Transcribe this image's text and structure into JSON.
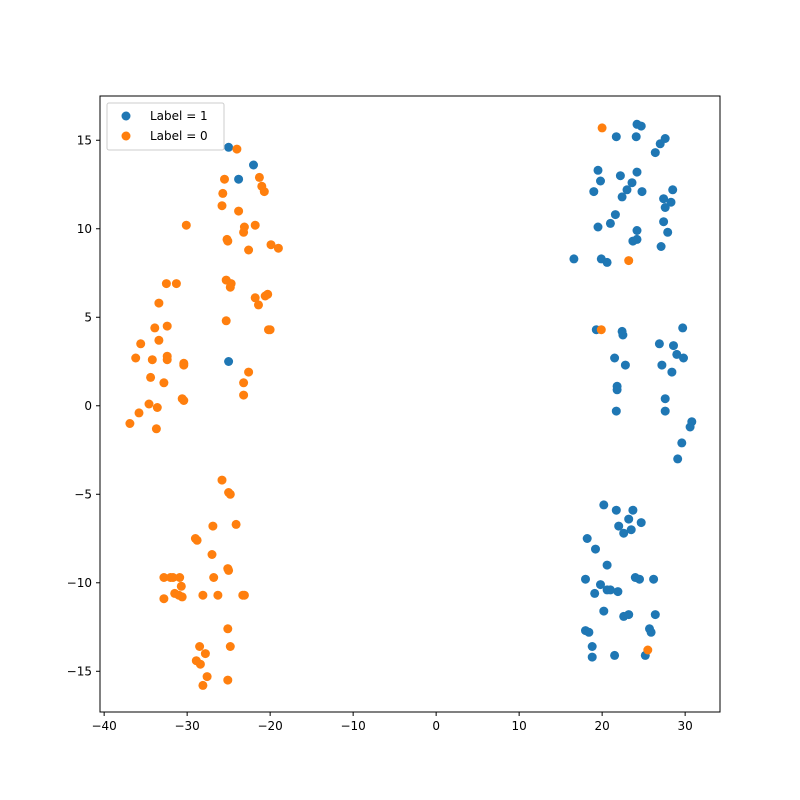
{
  "chart_data": {
    "type": "scatter",
    "title": "",
    "xlabel": "",
    "ylabel": "",
    "xlim": [
      -40.5,
      34.2
    ],
    "ylim": [
      -17.3,
      17.5
    ],
    "xticks": [
      -40,
      -30,
      -20,
      -10,
      0,
      10,
      20,
      30
    ],
    "yticks": [
      -15,
      -10,
      -5,
      0,
      5,
      10,
      15
    ],
    "xtick_labels": [
      "−40",
      "−30",
      "−20",
      "−10",
      "0",
      "10",
      "20",
      "30"
    ],
    "ytick_labels": [
      "−15",
      "−10",
      "−5",
      "0",
      "5",
      "10",
      "15"
    ],
    "grid": false,
    "legend_position": "upper-left",
    "series": [
      {
        "name": "Label = 1",
        "color": "#1f77b4",
        "points": [
          [
            -25,
            14.6
          ],
          [
            -22,
            13.6
          ],
          [
            -23.8,
            12.8
          ],
          [
            -25,
            2.5
          ],
          [
            24.2,
            15.9
          ],
          [
            24.7,
            15.8
          ],
          [
            21.7,
            15.2
          ],
          [
            24.1,
            15.2
          ],
          [
            27.6,
            15.1
          ],
          [
            27,
            14.8
          ],
          [
            26.4,
            14.3
          ],
          [
            19.5,
            13.3
          ],
          [
            22.2,
            13
          ],
          [
            24.2,
            13.2
          ],
          [
            19.8,
            12.7
          ],
          [
            23.6,
            12.6
          ],
          [
            23,
            12.2
          ],
          [
            22.4,
            11.8
          ],
          [
            24.8,
            12.1
          ],
          [
            28.5,
            12.2
          ],
          [
            19,
            12.1
          ],
          [
            27.4,
            11.7
          ],
          [
            27.6,
            11.2
          ],
          [
            28.3,
            11.5
          ],
          [
            21.6,
            10.8
          ],
          [
            21,
            10.3
          ],
          [
            27.4,
            10.4
          ],
          [
            19.5,
            10.1
          ],
          [
            24.2,
            9.9
          ],
          [
            27.9,
            9.8
          ],
          [
            24.2,
            9.4
          ],
          [
            23.7,
            9.3
          ],
          [
            27.1,
            9
          ],
          [
            16.6,
            8.3
          ],
          [
            19.9,
            8.3
          ],
          [
            20.6,
            8.1
          ],
          [
            19.3,
            4.3
          ],
          [
            22.4,
            4.2
          ],
          [
            22.5,
            4
          ],
          [
            29.7,
            4.4
          ],
          [
            26.9,
            3.5
          ],
          [
            28.6,
            3.4
          ],
          [
            29,
            2.9
          ],
          [
            29.8,
            2.7
          ],
          [
            21.5,
            2.7
          ],
          [
            22.8,
            2.3
          ],
          [
            27.2,
            2.3
          ],
          [
            28.4,
            1.9
          ],
          [
            21.8,
            1.1
          ],
          [
            21.8,
            0.9
          ],
          [
            27.6,
            0.4
          ],
          [
            27.6,
            -0.3
          ],
          [
            21.7,
            -0.3
          ],
          [
            30.8,
            -0.9
          ],
          [
            30.6,
            -1.2
          ],
          [
            29.6,
            -2.1
          ],
          [
            29.1,
            -3
          ],
          [
            20.2,
            -5.6
          ],
          [
            21.7,
            -5.9
          ],
          [
            23.7,
            -5.9
          ],
          [
            23.2,
            -6.4
          ],
          [
            24.7,
            -6.6
          ],
          [
            22,
            -6.8
          ],
          [
            23.5,
            -7
          ],
          [
            22.6,
            -7.2
          ],
          [
            18.2,
            -7.5
          ],
          [
            19.2,
            -8.1
          ],
          [
            20.6,
            -9
          ],
          [
            18,
            -9.8
          ],
          [
            24,
            -9.7
          ],
          [
            24.5,
            -9.8
          ],
          [
            26.2,
            -9.8
          ],
          [
            19.8,
            -10.1
          ],
          [
            20.6,
            -10.4
          ],
          [
            21,
            -10.4
          ],
          [
            21.9,
            -10.5
          ],
          [
            19.1,
            -10.6
          ],
          [
            20.2,
            -11.6
          ],
          [
            22.6,
            -11.9
          ],
          [
            23.2,
            -11.8
          ],
          [
            26.4,
            -11.8
          ],
          [
            18,
            -12.7
          ],
          [
            18.4,
            -12.8
          ],
          [
            25.7,
            -12.6
          ],
          [
            25.9,
            -12.8
          ],
          [
            18.8,
            -13.6
          ],
          [
            21.5,
            -14.1
          ],
          [
            18.8,
            -14.2
          ],
          [
            25.2,
            -14.1
          ]
        ]
      },
      {
        "name": "Label = 0",
        "color": "#ff7f0e",
        "points": [
          [
            -24,
            14.5
          ],
          [
            20,
            15.7
          ],
          [
            -25.5,
            12.8
          ],
          [
            -21.3,
            12.9
          ],
          [
            -25.7,
            12
          ],
          [
            -21,
            12.4
          ],
          [
            -20.7,
            12.1
          ],
          [
            -25.8,
            11.3
          ],
          [
            -23.8,
            11
          ],
          [
            -30.1,
            10.2
          ],
          [
            -23.1,
            10.1
          ],
          [
            -21.8,
            10.2
          ],
          [
            -23.2,
            9.8
          ],
          [
            -25.2,
            9.4
          ],
          [
            -25.1,
            9.3
          ],
          [
            -19.9,
            9.1
          ],
          [
            -19,
            8.9
          ],
          [
            -22.6,
            8.8
          ],
          [
            23.2,
            8.2
          ],
          [
            -25.3,
            7.1
          ],
          [
            -24.7,
            6.9
          ],
          [
            -24.8,
            6.7
          ],
          [
            -32.5,
            6.9
          ],
          [
            -31.3,
            6.9
          ],
          [
            -20.6,
            6.2
          ],
          [
            -20.3,
            6.3
          ],
          [
            -21.8,
            6.1
          ],
          [
            -21.4,
            5.7
          ],
          [
            -33.4,
            5.8
          ],
          [
            -25.3,
            4.8
          ],
          [
            -33.9,
            4.4
          ],
          [
            -32.4,
            4.5
          ],
          [
            -20.2,
            4.3
          ],
          [
            -20,
            4.3
          ],
          [
            19.9,
            4.3
          ],
          [
            -33.4,
            3.7
          ],
          [
            -35.6,
            3.5
          ],
          [
            -36.2,
            2.7
          ],
          [
            -34.2,
            2.6
          ],
          [
            -32.4,
            2.8
          ],
          [
            -32.4,
            2.6
          ],
          [
            -30.4,
            2.4
          ],
          [
            -30.4,
            2.3
          ],
          [
            -22.6,
            1.9
          ],
          [
            -34.4,
            1.6
          ],
          [
            -32.8,
            1.3
          ],
          [
            -23.2,
            1.3
          ],
          [
            -23.2,
            0.6
          ],
          [
            -30.6,
            0.4
          ],
          [
            -30.4,
            0.3
          ],
          [
            -34.6,
            0.1
          ],
          [
            -33.6,
            -0.1
          ],
          [
            -35.8,
            -0.4
          ],
          [
            -36.9,
            -1
          ],
          [
            -33.7,
            -1.3
          ],
          [
            -25.8,
            -4.2
          ],
          [
            -25,
            -4.9
          ],
          [
            -24.8,
            -5
          ],
          [
            -24.1,
            -6.7
          ],
          [
            -26.9,
            -6.8
          ],
          [
            -29,
            -7.5
          ],
          [
            -28.8,
            -7.6
          ],
          [
            -27,
            -8.4
          ],
          [
            -25.1,
            -9.2
          ],
          [
            -25,
            -9.3
          ],
          [
            -32.8,
            -9.7
          ],
          [
            -32,
            -9.7
          ],
          [
            -31.7,
            -9.7
          ],
          [
            -30.9,
            -9.7
          ],
          [
            -26.8,
            -9.7
          ],
          [
            -30.7,
            -10.2
          ],
          [
            -31.5,
            -10.6
          ],
          [
            -31,
            -10.7
          ],
          [
            -30.6,
            -10.8
          ],
          [
            -32.8,
            -10.9
          ],
          [
            -28.1,
            -10.7
          ],
          [
            -26.3,
            -10.7
          ],
          [
            -23.3,
            -10.7
          ],
          [
            -23.1,
            -10.7
          ],
          [
            -25.1,
            -12.6
          ],
          [
            -28.5,
            -13.6
          ],
          [
            -24.8,
            -13.6
          ],
          [
            -27.8,
            -14
          ],
          [
            -28.9,
            -14.4
          ],
          [
            -28.4,
            -14.6
          ],
          [
            -27.6,
            -15.3
          ],
          [
            -25.1,
            -15.5
          ],
          [
            -28.1,
            -15.8
          ],
          [
            25.5,
            -13.8
          ]
        ]
      }
    ]
  }
}
